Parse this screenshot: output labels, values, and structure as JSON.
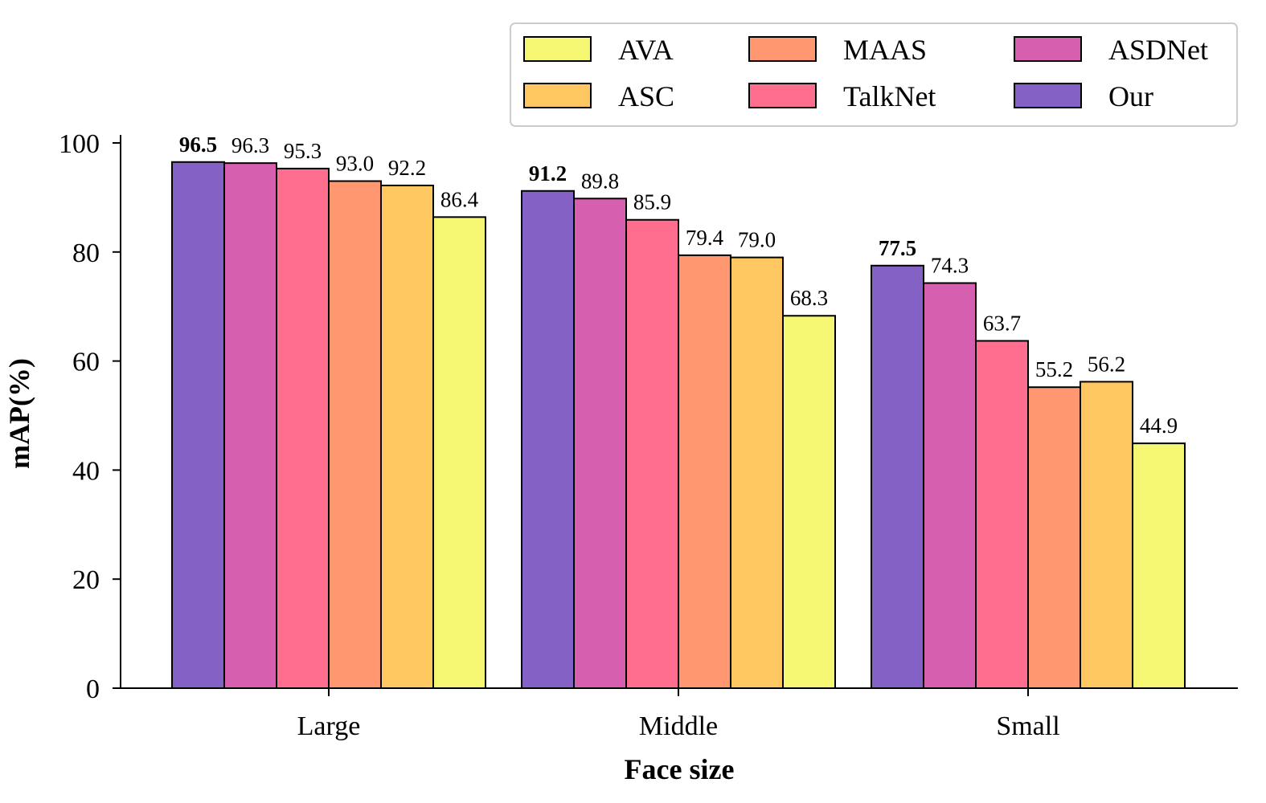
{
  "chart_data": {
    "type": "bar",
    "title": "",
    "xlabel": "Face size",
    "ylabel": "mAP(%)",
    "ylim": [
      0,
      100
    ],
    "yticks": [
      "0",
      "20",
      "40",
      "60",
      "80",
      "100"
    ],
    "categories": [
      "Large",
      "Middle",
      "Small"
    ],
    "series": [
      {
        "name": "Our",
        "color": "#8461c4",
        "values": [
          96.5,
          91.2,
          77.5
        ],
        "labels": [
          "96.5",
          "91.2",
          "77.5"
        ],
        "bold_labels": true
      },
      {
        "name": "ASDNet",
        "color": "#d75fb0",
        "values": [
          96.3,
          89.8,
          74.3
        ],
        "labels": [
          "96.3",
          "89.8",
          "74.3"
        ]
      },
      {
        "name": "TalkNet",
        "color": "#ff6e8e",
        "values": [
          95.3,
          85.9,
          63.7
        ],
        "labels": [
          "95.3",
          "85.9",
          "63.7"
        ]
      },
      {
        "name": "MAAS",
        "color": "#ff9870",
        "values": [
          93.0,
          79.4,
          55.2
        ],
        "labels": [
          "93.0",
          "79.4",
          "55.2"
        ]
      },
      {
        "name": "ASC",
        "color": "#fec75f",
        "values": [
          92.2,
          79.0,
          56.2
        ],
        "labels": [
          "92.2",
          "79.0",
          "56.2"
        ]
      },
      {
        "name": "AVA",
        "color": "#f5f772",
        "values": [
          86.4,
          68.3,
          44.9
        ],
        "labels": [
          "86.4",
          "68.3",
          "44.9"
        ]
      }
    ],
    "legend": {
      "placement": "top-right",
      "order": [
        "AVA",
        "MAAS",
        "ASDNet",
        "ASC",
        "TalkNet",
        "Our"
      ]
    },
    "grid": false
  }
}
